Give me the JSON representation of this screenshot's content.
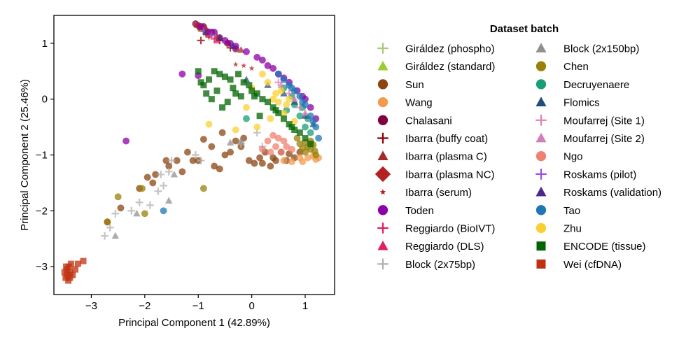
{
  "chart_data": {
    "type": "scatter",
    "xlabel": "Principal Component 1 (42.89%)",
    "ylabel": "Principal Component 2 (25.46%)",
    "xlim": [
      -3.7,
      1.55
    ],
    "ylim": [
      -3.5,
      1.5
    ],
    "xticks": [
      -3,
      -2,
      -1,
      0,
      1
    ],
    "yticks": [
      -3,
      -2,
      -1,
      0,
      1
    ],
    "legend": {
      "title": "Dataset batch",
      "placement": "right",
      "columns": 2
    },
    "series": [
      {
        "name": "Giráldez (phospho)",
        "color": "#a8c97a",
        "marker": "plus",
        "points": [
          [
            -0.98,
            1.28
          ],
          [
            -0.9,
            1.22
          ],
          [
            -0.8,
            1.12
          ]
        ]
      },
      {
        "name": "Giráldez (standard)",
        "color": "#9acd32",
        "marker": "triangle",
        "points": [
          [
            -0.95,
            1.25
          ],
          [
            -0.85,
            1.18
          ]
        ]
      },
      {
        "name": "Sun",
        "color": "#8b4513",
        "marker": "circle",
        "points": [
          [
            -2.7,
            -2.2
          ],
          [
            -2.45,
            -1.95
          ],
          [
            -2.1,
            -1.6
          ],
          [
            -1.95,
            -1.4
          ],
          [
            -1.8,
            -1.35
          ],
          [
            -1.55,
            -1.2
          ],
          [
            -1.4,
            -1.1
          ],
          [
            -1.3,
            -1.3
          ],
          [
            -1.2,
            -0.95
          ],
          [
            -1.1,
            -1.1
          ],
          [
            -1.0,
            -1.1
          ],
          [
            -0.7,
            -1.2
          ],
          [
            -0.6,
            -1.25
          ],
          [
            -0.5,
            -1.0
          ],
          [
            -0.4,
            -0.95
          ],
          [
            -0.3,
            -0.75
          ],
          [
            -0.2,
            -0.85
          ],
          [
            -0.05,
            -1.1
          ],
          [
            0.05,
            -1.15
          ],
          [
            0.15,
            -1.05
          ],
          [
            0.25,
            -0.95
          ],
          [
            0.35,
            -1.2
          ],
          [
            0.45,
            -1.1
          ],
          [
            0.55,
            -0.95
          ],
          [
            0.65,
            -1.1
          ],
          [
            0.8,
            -1.05
          ],
          [
            0.9,
            -0.95
          ],
          [
            -0.9,
            -0.72
          ],
          [
            -0.75,
            -0.85
          ],
          [
            -0.55,
            -0.6
          ],
          [
            -1.6,
            -1.1
          ],
          [
            -1.85,
            -1.5
          ],
          [
            0.2,
            -1.15
          ],
          [
            0.4,
            -1.05
          ],
          [
            0.7,
            -0.98
          ],
          [
            -0.15,
            -0.7
          ]
        ]
      },
      {
        "name": "Wang",
        "color": "#f39a4f",
        "marker": "circle",
        "points": [
          [
            0.6,
            -1.1
          ],
          [
            0.75,
            -1.12
          ],
          [
            0.9,
            -1.05
          ],
          [
            1.05,
            -1.05
          ],
          [
            1.15,
            -1.02
          ],
          [
            1.2,
            -1.08
          ],
          [
            0.95,
            -1.12
          ],
          [
            1.25,
            -1.05
          ]
        ]
      },
      {
        "name": "Chalasani",
        "color": "#800040",
        "marker": "circle",
        "points": [
          [
            -1.05,
            1.35
          ],
          [
            -0.9,
            1.3
          ],
          [
            -0.75,
            1.2
          ],
          [
            -0.6,
            1.1
          ],
          [
            -0.45,
            1.0
          ],
          [
            -0.3,
            0.9
          ]
        ]
      },
      {
        "name": "Ibarra (buffy coat)",
        "color": "#8b0000",
        "marker": "plus",
        "points": [
          [
            -1.0,
            1.3
          ],
          [
            -0.8,
            1.15
          ],
          [
            -0.95,
            1.05
          ],
          [
            -0.6,
            1.05
          ],
          [
            -0.4,
            0.92
          ]
        ]
      },
      {
        "name": "Ibarra (plasma C)",
        "color": "#a52a2a",
        "marker": "triangle",
        "points": [
          [
            -1.02,
            1.33
          ],
          [
            -0.85,
            1.22
          ],
          [
            -0.65,
            1.12
          ],
          [
            -0.45,
            1.02
          ],
          [
            -0.2,
            0.88
          ]
        ]
      },
      {
        "name": "Ibarra (plasma NC)",
        "color": "#b22222",
        "marker": "diamond",
        "points": [
          [
            -0.98,
            1.3
          ],
          [
            -0.88,
            1.25
          ]
        ]
      },
      {
        "name": "Ibarra (serum)",
        "color": "#b22222",
        "marker": "star",
        "points": [
          [
            -0.15,
            0.6
          ],
          [
            0.0,
            0.55
          ],
          [
            -0.3,
            0.62
          ]
        ]
      },
      {
        "name": "Toden",
        "color": "#8b00a8",
        "marker": "circle",
        "points": [
          [
            -2.35,
            -0.75
          ],
          [
            -1.3,
            0.45
          ],
          [
            -1.0,
            0.42
          ],
          [
            -0.95,
            1.3
          ],
          [
            -0.7,
            1.2
          ],
          [
            -0.5,
            1.05
          ],
          [
            -0.3,
            0.95
          ],
          [
            -0.1,
            0.85
          ],
          [
            0.1,
            0.75
          ],
          [
            0.3,
            0.6
          ],
          [
            0.5,
            0.45
          ],
          [
            0.7,
            0.3
          ],
          [
            0.85,
            0.15
          ],
          [
            1.0,
            0.0
          ],
          [
            1.1,
            -0.15
          ],
          [
            1.2,
            -0.35
          ],
          [
            -0.4,
            1.0
          ],
          [
            0.2,
            0.7
          ],
          [
            0.6,
            0.38
          ],
          [
            0.95,
            0.05
          ],
          [
            -0.8,
            1.2
          ],
          [
            0.4,
            0.55
          ]
        ]
      },
      {
        "name": "Reggiardo (BioIVT)",
        "color": "#e0205f",
        "marker": "plus",
        "points": [
          [
            -0.85,
            1.18
          ],
          [
            -0.7,
            1.08
          ]
        ]
      },
      {
        "name": "Reggiardo (DLS)",
        "color": "#e0205f",
        "marker": "triangle",
        "points": [
          [
            -0.8,
            1.15
          ],
          [
            -0.65,
            1.05
          ]
        ]
      },
      {
        "name": "Block (2x75bp)",
        "color": "#b0b0b0",
        "marker": "plus",
        "points": [
          [
            -2.75,
            -2.45
          ],
          [
            -2.65,
            -2.3
          ],
          [
            -2.55,
            -2.05
          ],
          [
            -2.25,
            -2.0
          ],
          [
            -2.1,
            -1.85
          ],
          [
            -1.9,
            -1.9
          ],
          [
            -1.75,
            -1.65
          ],
          [
            -1.7,
            -1.35
          ],
          [
            -1.65,
            -1.55
          ],
          [
            -1.55,
            -1.3
          ],
          [
            -1.5,
            -1.1
          ],
          [
            -1.05,
            -1.0
          ],
          [
            -0.95,
            -1.1
          ],
          [
            -0.2,
            -0.8
          ],
          [
            0.1,
            -0.6
          ],
          [
            0.2,
            -0.85
          ]
        ]
      },
      {
        "name": "Block (2x150bp)",
        "color": "#909090",
        "marker": "triangle",
        "points": [
          [
            -2.55,
            -2.45
          ],
          [
            -2.15,
            -2.05
          ],
          [
            -1.55,
            -1.82
          ],
          [
            -1.45,
            -1.35
          ],
          [
            -0.4,
            -0.78
          ],
          [
            -0.2,
            -0.75
          ]
        ]
      },
      {
        "name": "Chen",
        "color": "#9a8008",
        "marker": "circle",
        "points": [
          [
            -2.7,
            -2.2
          ],
          [
            -2.5,
            -1.75
          ],
          [
            -2.05,
            -1.6
          ],
          [
            -2.0,
            -2.05
          ],
          [
            -0.9,
            -1.6
          ],
          [
            0.9,
            -0.8
          ],
          [
            1.0,
            -0.78
          ],
          [
            1.05,
            -0.85
          ],
          [
            1.1,
            -0.9
          ],
          [
            1.15,
            -0.82
          ],
          [
            1.2,
            -1.0
          ],
          [
            1.0,
            -0.95
          ],
          [
            0.95,
            -0.88
          ],
          [
            1.1,
            -0.75
          ],
          [
            0.85,
            -0.7
          ],
          [
            1.18,
            -0.93
          ]
        ]
      },
      {
        "name": "Decruyenaere",
        "color": "#1a9e77",
        "marker": "circle",
        "points": [
          [
            -0.1,
            -0.35
          ],
          [
            0.6,
            0.2
          ],
          [
            0.8,
            -0.1
          ],
          [
            0.9,
            -0.3
          ],
          [
            1.0,
            -0.5
          ],
          [
            1.1,
            -0.6
          ],
          [
            1.05,
            -0.35
          ],
          [
            0.95,
            -0.15
          ],
          [
            0.75,
            0.05
          ],
          [
            0.65,
            -0.2
          ]
        ]
      },
      {
        "name": "Flomics",
        "color": "#1f4f7a",
        "marker": "triangle",
        "points": [
          [
            -0.1,
            0.35
          ],
          [
            0.3,
            0.25
          ],
          [
            0.6,
            0.1
          ],
          [
            0.8,
            -0.05
          ],
          [
            1.0,
            -0.3
          ],
          [
            1.15,
            -0.45
          ]
        ]
      },
      {
        "name": "Moufarrej (Site 1)",
        "color": "#e080b0",
        "marker": "plus",
        "points": [
          [
            0.5,
            0.3
          ],
          [
            0.7,
            0.1
          ],
          [
            0.9,
            -0.15
          ]
        ]
      },
      {
        "name": "Moufarrej (Site 2)",
        "color": "#d080b8",
        "marker": "triangle",
        "points": [
          [
            0.55,
            0.25
          ],
          [
            0.8,
            0.0
          ],
          [
            1.0,
            -0.25
          ]
        ]
      },
      {
        "name": "Ngo",
        "color": "#f08070",
        "marker": "circle",
        "points": [
          [
            0.2,
            -0.9
          ],
          [
            0.3,
            -0.75
          ],
          [
            0.35,
            -0.95
          ],
          [
            0.45,
            -0.85
          ],
          [
            0.5,
            -0.7
          ],
          [
            0.55,
            -0.95
          ],
          [
            0.65,
            -0.85
          ],
          [
            0.75,
            -0.9
          ],
          [
            0.4,
            -0.65
          ],
          [
            0.6,
            -0.75
          ]
        ]
      },
      {
        "name": "Roskams (pilot)",
        "color": "#9b50e0",
        "marker": "plus",
        "points": [
          [
            -0.9,
            1.22
          ],
          [
            -0.75,
            1.15
          ]
        ]
      },
      {
        "name": "Roskams (validation)",
        "color": "#4b2a8a",
        "marker": "triangle",
        "points": [
          [
            -0.85,
            1.2
          ],
          [
            -0.6,
            1.1
          ],
          [
            -0.35,
            0.95
          ]
        ]
      },
      {
        "name": "Tao",
        "color": "#1f77b4",
        "marker": "circle",
        "points": [
          [
            -1.65,
            -2.0
          ],
          [
            0.5,
            0.45
          ],
          [
            0.6,
            0.35
          ],
          [
            0.7,
            0.25
          ],
          [
            0.8,
            0.15
          ],
          [
            0.9,
            0.05
          ],
          [
            1.0,
            -0.1
          ],
          [
            1.1,
            -0.3
          ],
          [
            1.2,
            -0.5
          ],
          [
            1.25,
            -0.7
          ],
          [
            0.75,
            0.2
          ],
          [
            0.95,
            -0.05
          ],
          [
            1.15,
            -0.4
          ]
        ]
      },
      {
        "name": "Zhu",
        "color": "#f9d030",
        "marker": "circle",
        "points": [
          [
            -0.8,
            -0.45
          ],
          [
            -0.3,
            -0.55
          ],
          [
            0.1,
            -0.5
          ],
          [
            -0.1,
            -0.15
          ],
          [
            0.0,
            0.2
          ],
          [
            0.2,
            0.45
          ],
          [
            0.3,
            0.3
          ],
          [
            0.45,
            0.1
          ],
          [
            0.5,
            -0.05
          ],
          [
            0.6,
            -0.25
          ],
          [
            0.7,
            0.0
          ],
          [
            0.8,
            -0.4
          ],
          [
            0.55,
            0.15
          ],
          [
            0.4,
            0.0
          ],
          [
            0.65,
            -0.1
          ],
          [
            0.35,
            -0.35
          ]
        ]
      },
      {
        "name": "ENCODE (tissue)",
        "color": "#006400",
        "marker": "square",
        "points": [
          [
            -1.0,
            0.5
          ],
          [
            -0.95,
            0.3
          ],
          [
            -0.9,
            0.25
          ],
          [
            -0.85,
            0.1
          ],
          [
            -0.75,
            0.0
          ],
          [
            -0.7,
            0.5
          ],
          [
            -0.6,
            0.45
          ],
          [
            -0.5,
            0.4
          ],
          [
            -0.4,
            0.35
          ],
          [
            -0.35,
            0.2
          ],
          [
            -0.3,
            0.1
          ],
          [
            -0.2,
            0.05
          ],
          [
            -0.15,
            0.3
          ],
          [
            -0.05,
            0.25
          ],
          [
            0.0,
            0.15
          ],
          [
            0.1,
            0.1
          ],
          [
            0.2,
            0.0
          ],
          [
            0.3,
            -0.05
          ],
          [
            0.4,
            -0.15
          ],
          [
            0.5,
            -0.25
          ],
          [
            0.6,
            -0.35
          ],
          [
            0.7,
            -0.45
          ],
          [
            0.8,
            -0.55
          ],
          [
            0.9,
            -0.6
          ],
          [
            1.0,
            -0.7
          ],
          [
            1.1,
            -0.8
          ],
          [
            -0.55,
            -0.15
          ],
          [
            -0.45,
            -0.05
          ],
          [
            -0.65,
            0.15
          ],
          [
            0.15,
            -0.3
          ],
          [
            -0.8,
            0.35
          ],
          [
            -0.25,
            0.45
          ],
          [
            0.05,
            0.05
          ],
          [
            0.45,
            -0.2
          ],
          [
            0.75,
            -0.5
          ]
        ]
      },
      {
        "name": "Wei (cfDNA)",
        "color": "#c0300f",
        "marker": "square",
        "points": [
          [
            -3.45,
            -3.05
          ],
          [
            -3.42,
            -3.0
          ],
          [
            -3.4,
            -3.1
          ],
          [
            -3.38,
            -2.95
          ],
          [
            -3.45,
            -3.15
          ],
          [
            -3.48,
            -3.2
          ],
          [
            -3.43,
            -3.25
          ],
          [
            -3.35,
            -3.15
          ],
          [
            -3.3,
            -3.05
          ],
          [
            -3.25,
            -2.95
          ],
          [
            -3.15,
            -2.9
          ],
          [
            -3.5,
            -3.1
          ],
          [
            -3.4,
            -3.2
          ],
          [
            -3.47,
            -3.0
          ]
        ]
      }
    ]
  }
}
